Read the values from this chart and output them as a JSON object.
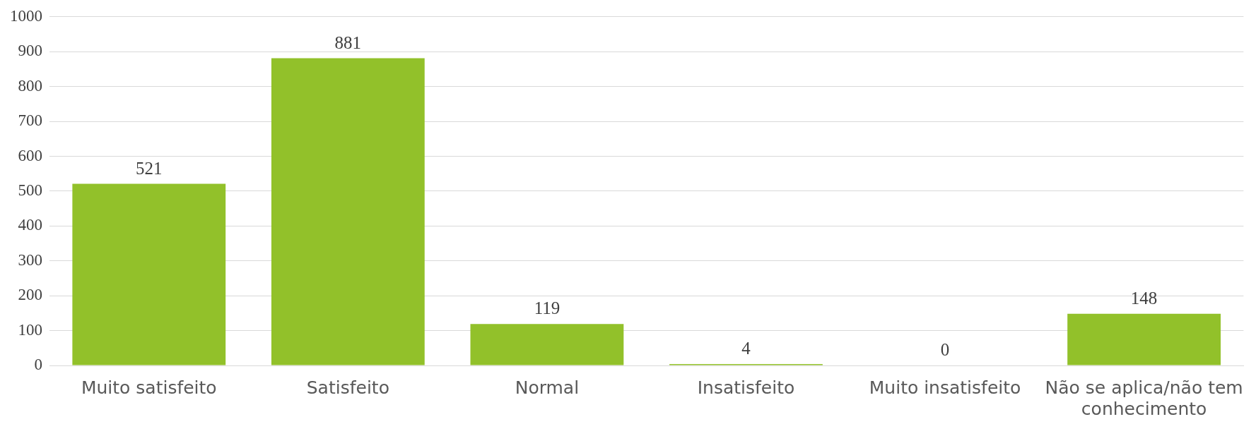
{
  "chart_data": {
    "type": "bar",
    "categories": [
      "Muito satisfeito",
      "Satisfeito",
      "Normal",
      "Insatisfeito",
      "Muito insatisfeito",
      "Não se aplica/não tem conhecimento"
    ],
    "values": [
      521,
      881,
      119,
      4,
      0,
      148
    ],
    "color": "#92c12a",
    "ylim": [
      0,
      1000
    ],
    "yticks": [
      0,
      100,
      200,
      300,
      400,
      500,
      600,
      700,
      800,
      900,
      1000
    ],
    "grid": "y",
    "legend": false,
    "data_labels": true
  }
}
